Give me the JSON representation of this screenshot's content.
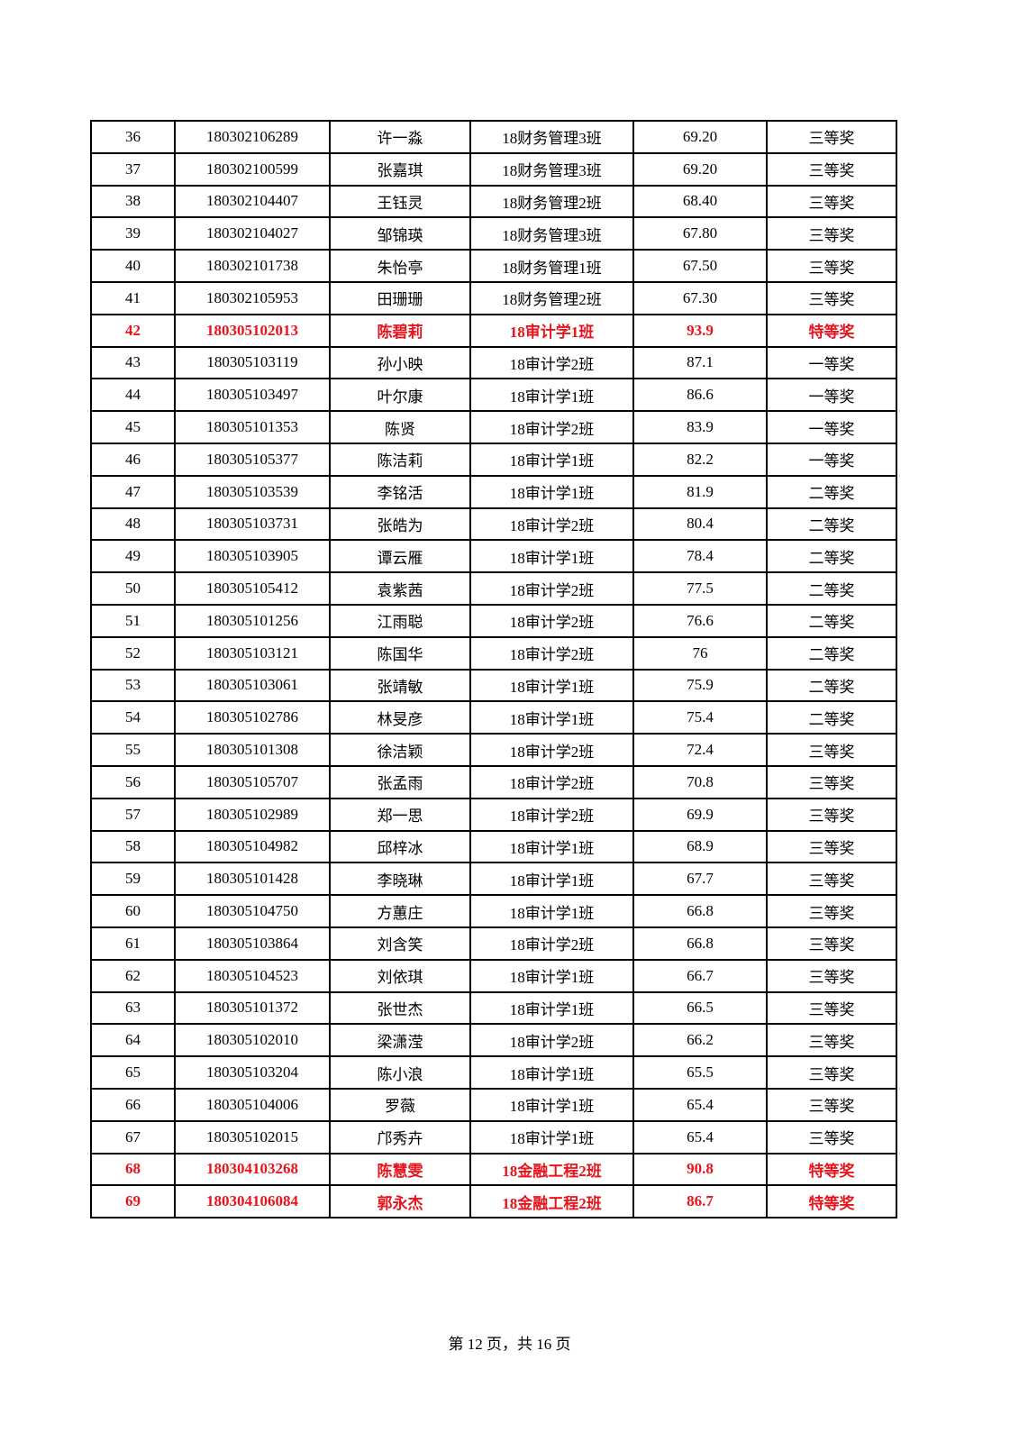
{
  "highlight_color": "#e8141c",
  "rows": [
    {
      "no": "36",
      "id": "180302106289",
      "name": "许一淼",
      "class": "18财务管理3班",
      "score": "69.20",
      "award": "三等奖",
      "highlight": false
    },
    {
      "no": "37",
      "id": "180302100599",
      "name": "张嘉琪",
      "class": "18财务管理3班",
      "score": "69.20",
      "award": "三等奖",
      "highlight": false
    },
    {
      "no": "38",
      "id": "180302104407",
      "name": "王钰灵",
      "class": "18财务管理2班",
      "score": "68.40",
      "award": "三等奖",
      "highlight": false
    },
    {
      "no": "39",
      "id": "180302104027",
      "name": "邹锦瑛",
      "class": "18财务管理3班",
      "score": "67.80",
      "award": "三等奖",
      "highlight": false
    },
    {
      "no": "40",
      "id": "180302101738",
      "name": "朱怡亭",
      "class": "18财务管理1班",
      "score": "67.50",
      "award": "三等奖",
      "highlight": false
    },
    {
      "no": "41",
      "id": "180302105953",
      "name": "田珊珊",
      "class": "18财务管理2班",
      "score": "67.30",
      "award": "三等奖",
      "highlight": false
    },
    {
      "no": "42",
      "id": "180305102013",
      "name": "陈碧莉",
      "class": "18审计学1班",
      "score": "93.9",
      "award": "特等奖",
      "highlight": true
    },
    {
      "no": "43",
      "id": "180305103119",
      "name": "孙小映",
      "class": "18审计学2班",
      "score": "87.1",
      "award": "一等奖",
      "highlight": false
    },
    {
      "no": "44",
      "id": "180305103497",
      "name": "叶尔康",
      "class": "18审计学1班",
      "score": "86.6",
      "award": "一等奖",
      "highlight": false
    },
    {
      "no": "45",
      "id": "180305101353",
      "name": "陈贤",
      "class": "18审计学2班",
      "score": "83.9",
      "award": "一等奖",
      "highlight": false
    },
    {
      "no": "46",
      "id": "180305105377",
      "name": "陈洁莉",
      "class": "18审计学1班",
      "score": "82.2",
      "award": "一等奖",
      "highlight": false
    },
    {
      "no": "47",
      "id": "180305103539",
      "name": "李铭活",
      "class": "18审计学1班",
      "score": "81.9",
      "award": "二等奖",
      "highlight": false
    },
    {
      "no": "48",
      "id": "180305103731",
      "name": "张皓为",
      "class": "18审计学2班",
      "score": "80.4",
      "award": "二等奖",
      "highlight": false
    },
    {
      "no": "49",
      "id": "180305103905",
      "name": "谭云雁",
      "class": "18审计学1班",
      "score": "78.4",
      "award": "二等奖",
      "highlight": false
    },
    {
      "no": "50",
      "id": "180305105412",
      "name": "袁紫茜",
      "class": "18审计学2班",
      "score": "77.5",
      "award": "二等奖",
      "highlight": false
    },
    {
      "no": "51",
      "id": "180305101256",
      "name": "江雨聪",
      "class": "18审计学2班",
      "score": "76.6",
      "award": "二等奖",
      "highlight": false
    },
    {
      "no": "52",
      "id": "180305103121",
      "name": "陈国华",
      "class": "18审计学2班",
      "score": "76",
      "award": "二等奖",
      "highlight": false
    },
    {
      "no": "53",
      "id": "180305103061",
      "name": "张靖敏",
      "class": "18审计学1班",
      "score": "75.9",
      "award": "二等奖",
      "highlight": false
    },
    {
      "no": "54",
      "id": "180305102786",
      "name": "林旻彦",
      "class": "18审计学1班",
      "score": "75.4",
      "award": "二等奖",
      "highlight": false
    },
    {
      "no": "55",
      "id": "180305101308",
      "name": "徐洁颖",
      "class": "18审计学2班",
      "score": "72.4",
      "award": "三等奖",
      "highlight": false
    },
    {
      "no": "56",
      "id": "180305105707",
      "name": "张孟雨",
      "class": "18审计学2班",
      "score": "70.8",
      "award": "三等奖",
      "highlight": false
    },
    {
      "no": "57",
      "id": "180305102989",
      "name": "郑一思",
      "class": "18审计学2班",
      "score": "69.9",
      "award": "三等奖",
      "highlight": false
    },
    {
      "no": "58",
      "id": "180305104982",
      "name": "邱梓冰",
      "class": "18审计学1班",
      "score": "68.9",
      "award": "三等奖",
      "highlight": false
    },
    {
      "no": "59",
      "id": "180305101428",
      "name": "李晓琳",
      "class": "18审计学1班",
      "score": "67.7",
      "award": "三等奖",
      "highlight": false
    },
    {
      "no": "60",
      "id": "180305104750",
      "name": "方蕙庄",
      "class": "18审计学1班",
      "score": "66.8",
      "award": "三等奖",
      "highlight": false
    },
    {
      "no": "61",
      "id": "180305103864",
      "name": "刘含笑",
      "class": "18审计学2班",
      "score": "66.8",
      "award": "三等奖",
      "highlight": false
    },
    {
      "no": "62",
      "id": "180305104523",
      "name": "刘依琪",
      "class": "18审计学1班",
      "score": "66.7",
      "award": "三等奖",
      "highlight": false
    },
    {
      "no": "63",
      "id": "180305101372",
      "name": "张世杰",
      "class": "18审计学1班",
      "score": "66.5",
      "award": "三等奖",
      "highlight": false
    },
    {
      "no": "64",
      "id": "180305102010",
      "name": "梁潇滢",
      "class": "18审计学2班",
      "score": "66.2",
      "award": "三等奖",
      "highlight": false
    },
    {
      "no": "65",
      "id": "180305103204",
      "name": "陈小浪",
      "class": "18审计学1班",
      "score": "65.5",
      "award": "三等奖",
      "highlight": false
    },
    {
      "no": "66",
      "id": "180305104006",
      "name": "罗薇",
      "class": "18审计学1班",
      "score": "65.4",
      "award": "三等奖",
      "highlight": false
    },
    {
      "no": "67",
      "id": "180305102015",
      "name": "邝秀卉",
      "class": "18审计学1班",
      "score": "65.4",
      "award": "三等奖",
      "highlight": false
    },
    {
      "no": "68",
      "id": "180304103268",
      "name": "陈慧雯",
      "class": "18金融工程2班",
      "score": "90.8",
      "award": "特等奖",
      "highlight": true
    },
    {
      "no": "69",
      "id": "180304106084",
      "name": "郭永杰",
      "class": "18金融工程2班",
      "score": "86.7",
      "award": "特等奖",
      "highlight": true
    }
  ],
  "footer": {
    "page_label": "第 12 页，共 16 页"
  }
}
